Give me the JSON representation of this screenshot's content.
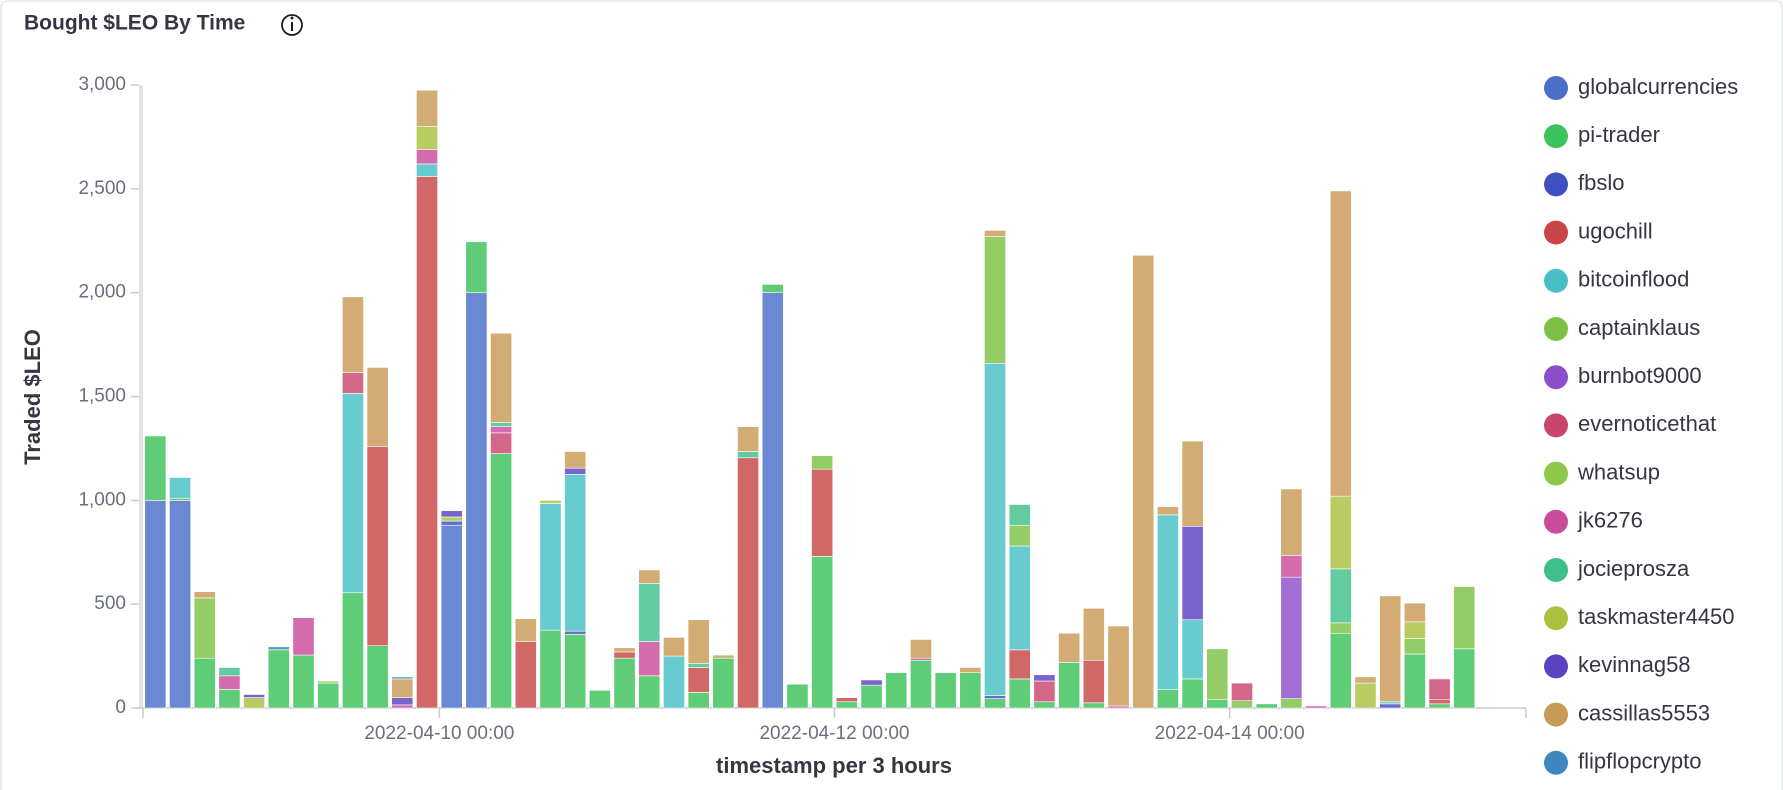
{
  "chart_data": {
    "type": "stacked_bar",
    "title": "Bought $LEO By Time",
    "x_label": "timestamp per 3 hours",
    "y_label": "Traded $LEO",
    "x": [
      "2022-04-08 12:00",
      "2022-04-08 15:00",
      "2022-04-08 18:00",
      "2022-04-08 21:00",
      "2022-04-09 00:00",
      "2022-04-09 03:00",
      "2022-04-09 06:00",
      "2022-04-09 09:00",
      "2022-04-09 12:00",
      "2022-04-09 15:00",
      "2022-04-09 18:00",
      "2022-04-09 21:00",
      "2022-04-10 00:00",
      "2022-04-10 03:00",
      "2022-04-10 06:00",
      "2022-04-10 09:00",
      "2022-04-10 12:00",
      "2022-04-10 15:00",
      "2022-04-10 18:00",
      "2022-04-10 21:00",
      "2022-04-11 00:00",
      "2022-04-11 03:00",
      "2022-04-11 06:00",
      "2022-04-11 09:00",
      "2022-04-11 12:00",
      "2022-04-11 15:00",
      "2022-04-11 18:00",
      "2022-04-11 21:00",
      "2022-04-12 00:00",
      "2022-04-12 03:00",
      "2022-04-12 06:00",
      "2022-04-12 09:00",
      "2022-04-12 12:00",
      "2022-04-12 15:00",
      "2022-04-12 18:00",
      "2022-04-12 21:00",
      "2022-04-13 00:00",
      "2022-04-13 03:00",
      "2022-04-13 06:00",
      "2022-04-13 09:00",
      "2022-04-13 12:00",
      "2022-04-13 15:00",
      "2022-04-13 18:00",
      "2022-04-13 21:00",
      "2022-04-14 00:00",
      "2022-04-14 03:00",
      "2022-04-14 06:00",
      "2022-04-14 09:00",
      "2022-04-14 12:00",
      "2022-04-14 15:00",
      "2022-04-14 18:00",
      "2022-04-14 21:00",
      "2022-04-15 00:00",
      "2022-04-15 03:00"
    ],
    "bin_hours": 3,
    "xlim": [
      "2022-04-08 12:00",
      "2022-04-15 12:00"
    ],
    "xticks": [
      "2022-04-10 00:00",
      "2022-04-12 00:00",
      "2022-04-14 00:00"
    ],
    "ylim": [
      0,
      3000
    ],
    "yticks": [
      0,
      500,
      {
        "value": 1000,
        "label": "1,000"
      },
      {
        "value": 1500,
        "label": "1,500"
      },
      {
        "value": 2000,
        "label": "2,000"
      },
      {
        "value": 2500,
        "label": "2,500"
      },
      {
        "value": 3000,
        "label": "3,000"
      }
    ],
    "grid": false,
    "legend": "right",
    "series": [
      {
        "name": "globalcurrencies",
        "color": "#4a6fc9",
        "values": [
          1000,
          1000,
          null,
          null,
          null,
          null,
          null,
          null,
          null,
          null,
          null,
          null,
          880,
          2000,
          null,
          null,
          null,
          null,
          null,
          null,
          null,
          null,
          null,
          null,
          null,
          2000,
          null,
          null,
          null,
          null,
          null,
          null,
          null,
          null,
          null,
          null,
          null,
          null,
          null,
          null,
          null,
          null,
          null,
          null,
          null,
          null,
          null,
          null,
          null,
          null,
          null,
          null,
          null,
          null
        ]
      },
      {
        "name": "pi-trader",
        "color": "#3cc25a",
        "values": [
          310,
          10,
          240,
          90,
          null,
          280,
          255,
          120,
          555,
          300,
          null,
          null,
          null,
          245,
          1225,
          null,
          375,
          355,
          85,
          240,
          155,
          null,
          75,
          240,
          null,
          40,
          115,
          730,
          30,
          110,
          170,
          230,
          170,
          170,
          45,
          140,
          30,
          220,
          25,
          null,
          null,
          90,
          140,
          40,
          null,
          20,
          null,
          null,
          360,
          null,
          null,
          260,
          20,
          285
        ]
      },
      {
        "name": "fbslo",
        "color": "#3f51c1",
        "values": [
          null,
          null,
          null,
          null,
          null,
          null,
          null,
          null,
          null,
          null,
          null,
          null,
          20,
          null,
          null,
          null,
          null,
          15,
          null,
          null,
          null,
          null,
          null,
          null,
          null,
          null,
          null,
          null,
          null,
          null,
          null,
          null,
          null,
          null,
          15,
          null,
          null,
          null,
          null,
          null,
          null,
          null,
          null,
          null,
          null,
          null,
          null,
          null,
          null,
          null,
          20,
          null,
          null,
          null
        ]
      },
      {
        "name": "ugochill",
        "color": "#c84646",
        "values": [
          null,
          null,
          null,
          null,
          null,
          null,
          null,
          null,
          null,
          960,
          null,
          2560,
          null,
          null,
          null,
          320,
          null,
          null,
          null,
          30,
          null,
          null,
          120,
          null,
          1205,
          null,
          null,
          420,
          20,
          null,
          null,
          null,
          null,
          null,
          null,
          140,
          null,
          null,
          205,
          null,
          null,
          null,
          null,
          null,
          null,
          null,
          null,
          null,
          null,
          null,
          null,
          null,
          20,
          null
        ]
      },
      {
        "name": "bitcoinflood",
        "color": "#47bfc4",
        "values": [
          null,
          100,
          null,
          null,
          null,
          null,
          null,
          null,
          960,
          null,
          null,
          60,
          null,
          null,
          null,
          null,
          610,
          755,
          null,
          null,
          null,
          250,
          null,
          null,
          null,
          null,
          null,
          null,
          null,
          null,
          null,
          null,
          null,
          null,
          1600,
          500,
          null,
          null,
          null,
          null,
          null,
          840,
          285,
          null,
          null,
          null,
          null,
          null,
          null,
          null,
          10,
          null,
          null,
          null
        ]
      },
      {
        "name": "captainklaus",
        "color": "#7dc144",
        "values": [
          null,
          null,
          290,
          null,
          null,
          null,
          null,
          null,
          null,
          null,
          null,
          null,
          null,
          null,
          null,
          null,
          null,
          null,
          null,
          null,
          null,
          null,
          null,
          null,
          null,
          null,
          null,
          65,
          null,
          null,
          null,
          null,
          null,
          null,
          610,
          100,
          null,
          null,
          null,
          null,
          null,
          null,
          null,
          245,
          35,
          null,
          45,
          null,
          50,
          null,
          null,
          75,
          null,
          300
        ]
      },
      {
        "name": "burnbot9000",
        "color": "#8d4ec9",
        "values": [
          null,
          null,
          null,
          null,
          null,
          null,
          null,
          null,
          null,
          null,
          null,
          null,
          null,
          null,
          null,
          null,
          null,
          null,
          null,
          null,
          null,
          null,
          null,
          null,
          null,
          null,
          null,
          null,
          null,
          null,
          null,
          null,
          null,
          null,
          null,
          null,
          null,
          null,
          null,
          null,
          null,
          null,
          null,
          null,
          null,
          null,
          585,
          null,
          null,
          null,
          null,
          null,
          null,
          null
        ]
      },
      {
        "name": "evernoticethat",
        "color": "#c9456c",
        "values": [
          null,
          null,
          null,
          null,
          null,
          null,
          null,
          null,
          100,
          null,
          null,
          null,
          null,
          null,
          100,
          null,
          null,
          null,
          null,
          null,
          null,
          null,
          null,
          null,
          null,
          null,
          null,
          null,
          null,
          null,
          null,
          null,
          null,
          null,
          null,
          null,
          100,
          null,
          null,
          null,
          null,
          null,
          null,
          null,
          85,
          null,
          null,
          null,
          null,
          null,
          null,
          null,
          100,
          null
        ]
      },
      {
        "name": "whatsup",
        "color": "#8cc84b",
        "values": [
          null,
          null,
          null,
          null,
          null,
          null,
          null,
          10,
          null,
          null,
          null,
          null,
          null,
          null,
          null,
          null,
          null,
          null,
          null,
          null,
          null,
          null,
          null,
          null,
          null,
          null,
          null,
          null,
          null,
          null,
          null,
          null,
          null,
          null,
          null,
          null,
          null,
          null,
          null,
          null,
          null,
          null,
          null,
          null,
          null,
          null,
          null,
          null,
          null,
          null,
          null,
          null,
          null,
          null
        ]
      },
      {
        "name": "jk6276",
        "color": "#c94b9a",
        "values": [
          null,
          null,
          null,
          65,
          null,
          null,
          180,
          null,
          null,
          null,
          15,
          70,
          null,
          null,
          30,
          null,
          null,
          null,
          null,
          null,
          165,
          null,
          null,
          null,
          null,
          null,
          null,
          null,
          null,
          null,
          null,
          10,
          null,
          null,
          null,
          null,
          null,
          null,
          null,
          10,
          null,
          null,
          null,
          null,
          null,
          null,
          105,
          10,
          null,
          null,
          null,
          null,
          null,
          null
        ]
      },
      {
        "name": "jocieprosza",
        "color": "#40bf8a",
        "values": [
          null,
          null,
          null,
          40,
          null,
          null,
          null,
          null,
          null,
          null,
          null,
          null,
          null,
          null,
          20,
          null,
          null,
          null,
          null,
          null,
          280,
          null,
          20,
          null,
          30,
          null,
          null,
          null,
          null,
          null,
          null,
          null,
          null,
          null,
          null,
          100,
          null,
          null,
          null,
          null,
          null,
          null,
          null,
          null,
          null,
          null,
          null,
          null,
          260,
          null,
          null,
          null,
          null,
          null
        ]
      },
      {
        "name": "taskmaster4450",
        "color": "#a9c13f",
        "values": [
          null,
          null,
          null,
          null,
          50,
          null,
          null,
          null,
          null,
          null,
          null,
          110,
          20,
          null,
          null,
          null,
          15,
          null,
          null,
          null,
          null,
          null,
          null,
          null,
          null,
          null,
          null,
          null,
          null,
          null,
          null,
          null,
          null,
          null,
          null,
          null,
          null,
          null,
          null,
          null,
          null,
          null,
          null,
          null,
          null,
          null,
          null,
          null,
          350,
          120,
          null,
          80,
          null,
          null
        ]
      },
      {
        "name": "kevinnag58",
        "color": "#5a42c0",
        "values": [
          null,
          null,
          null,
          null,
          15,
          null,
          null,
          null,
          null,
          null,
          35,
          null,
          30,
          null,
          null,
          null,
          null,
          30,
          null,
          null,
          null,
          null,
          null,
          null,
          null,
          null,
          null,
          null,
          null,
          25,
          null,
          null,
          null,
          null,
          null,
          null,
          30,
          null,
          null,
          null,
          null,
          null,
          450,
          null,
          null,
          null,
          null,
          null,
          null,
          null,
          null,
          null,
          null,
          null
        ]
      },
      {
        "name": "cassillas5553",
        "color": "#c89a55",
        "values": [
          null,
          null,
          30,
          null,
          null,
          null,
          null,
          null,
          365,
          380,
          90,
          175,
          null,
          null,
          430,
          110,
          null,
          80,
          null,
          20,
          65,
          90,
          210,
          15,
          120,
          null,
          null,
          null,
          null,
          null,
          null,
          90,
          null,
          25,
          30,
          null,
          null,
          140,
          250,
          385,
          2180,
          40,
          410,
          null,
          null,
          null,
          320,
          null,
          1470,
          30,
          510,
          90,
          null,
          null
        ]
      },
      {
        "name": "flipflopcrypto",
        "color": "#4086c0",
        "values": [
          null,
          null,
          null,
          null,
          null,
          15,
          null,
          null,
          null,
          null,
          10,
          null,
          null,
          null,
          null,
          null,
          null,
          null,
          null,
          null,
          null,
          null,
          null,
          null,
          null,
          null,
          null,
          null,
          null,
          null,
          null,
          null,
          null,
          null,
          null,
          null,
          null,
          null,
          null,
          null,
          null,
          null,
          null,
          null,
          null,
          null,
          null,
          null,
          null,
          null,
          null,
          null,
          null,
          null
        ]
      }
    ]
  }
}
